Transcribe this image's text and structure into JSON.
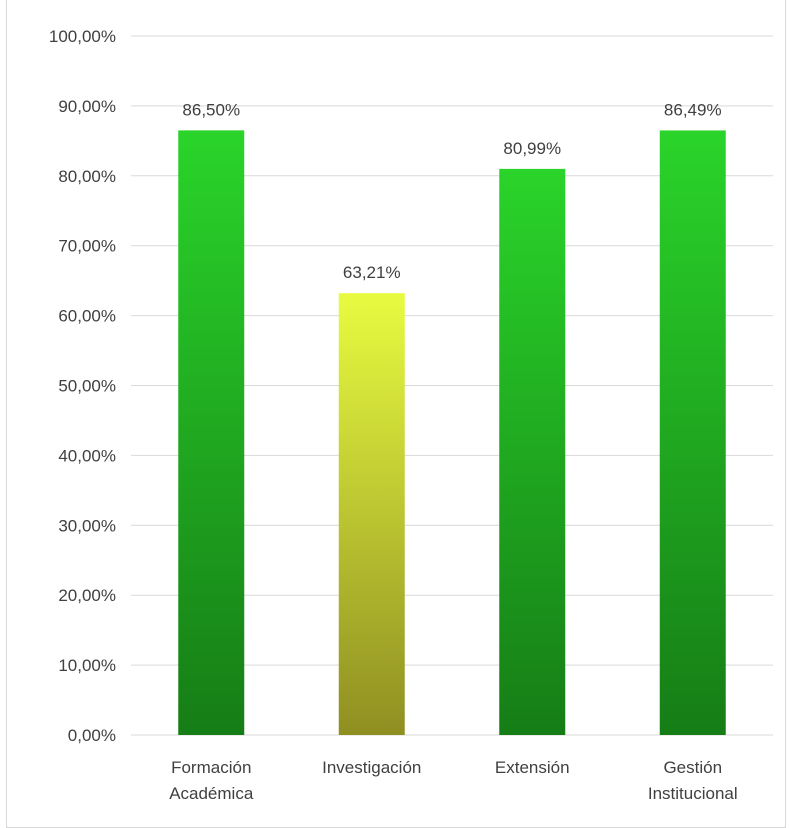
{
  "chart_data": {
    "type": "bar",
    "title": "",
    "xlabel": "",
    "ylabel": "",
    "categories": [
      [
        "Formación",
        "Académica"
      ],
      [
        "Investigación"
      ],
      [
        "Extensión"
      ],
      [
        "Gestión",
        "Institucional"
      ]
    ],
    "values": [
      86.5,
      63.21,
      80.99,
      86.49
    ],
    "value_labels": [
      "86,50%",
      "63,21%",
      "80,99%",
      "86,49%"
    ],
    "bar_colors": [
      {
        "top": "#2ad42a",
        "bottom": "#167d16"
      },
      {
        "top": "#e8fb40",
        "bottom": "#8f8f22"
      },
      {
        "top": "#2ad42a",
        "bottom": "#167d16"
      },
      {
        "top": "#2ad42a",
        "bottom": "#167d16"
      }
    ],
    "ylim": [
      0,
      100
    ],
    "yticks": [
      0,
      10,
      20,
      30,
      40,
      50,
      60,
      70,
      80,
      90,
      100
    ],
    "ytick_labels": [
      "0,00%",
      "10,00%",
      "20,00%",
      "30,00%",
      "40,00%",
      "50,00%",
      "60,00%",
      "70,00%",
      "80,00%",
      "90,00%",
      "100,00%"
    ],
    "grid": true,
    "legend": "none",
    "text_color": "#404040",
    "grid_color": "#d9d9d9"
  }
}
